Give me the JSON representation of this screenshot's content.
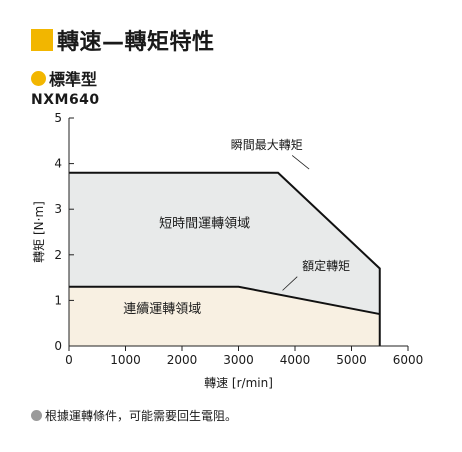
{
  "title": "轉速—轉矩特性",
  "subtitle": "標準型",
  "model": "NXM640",
  "note": "根據運轉條件，可能需要回生電阻。",
  "colors": {
    "accent": "#f2b600",
    "short_region": "#e8eaea",
    "continuous_region": "#f8f0e2",
    "line": "#111111",
    "note_bullet": "#9a9a9a"
  },
  "chart_data": {
    "type": "area",
    "xlabel": "轉速 [r/min]",
    "ylabel": "轉矩 [N·m]",
    "xlim": [
      0,
      6000
    ],
    "ylim": [
      0,
      5
    ],
    "xticks": [
      0,
      1000,
      2000,
      3000,
      4000,
      5000,
      6000
    ],
    "yticks": [
      0,
      1,
      2,
      3,
      4,
      5
    ],
    "grid": false,
    "region_labels": {
      "short": "短時間運轉領域",
      "continuous": "連續運轉領域"
    },
    "series": [
      {
        "name": "瞬間最大轉矩",
        "x": [
          0,
          3700,
          5500,
          5500
        ],
        "y": [
          3.8,
          3.8,
          1.7,
          0
        ]
      },
      {
        "name": "額定轉矩",
        "x": [
          0,
          3000,
          5500
        ],
        "y": [
          1.3,
          1.3,
          0.7
        ]
      }
    ]
  }
}
